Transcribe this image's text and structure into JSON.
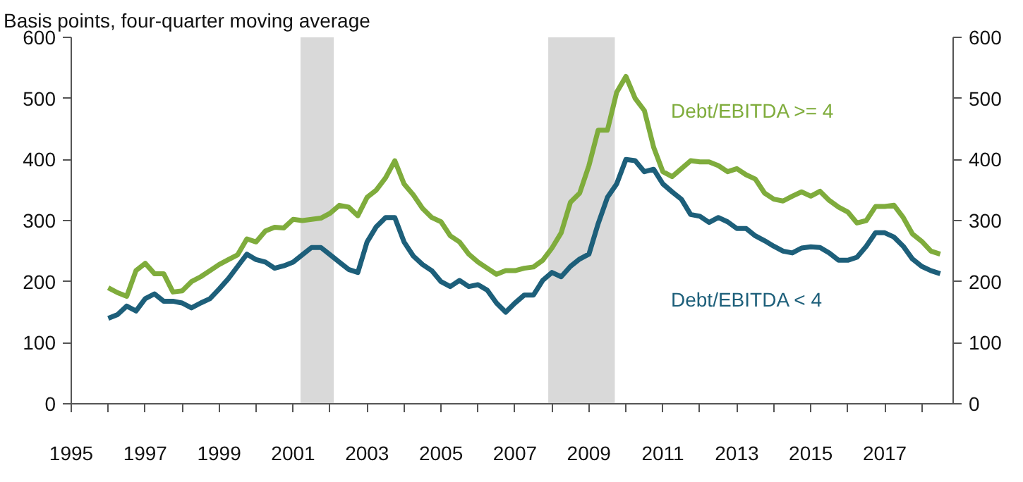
{
  "chart_data": {
    "type": "line",
    "ylabel": "Basis points, four-quarter moving average",
    "x": [
      1996.0,
      1996.25,
      1996.5,
      1996.75,
      1997.0,
      1997.25,
      1997.5,
      1997.75,
      1998.0,
      1998.25,
      1998.5,
      1998.75,
      1999.0,
      1999.25,
      1999.5,
      1999.75,
      2000.0,
      2000.25,
      2000.5,
      2000.75,
      2001.0,
      2001.25,
      2001.5,
      2001.75,
      2002.0,
      2002.25,
      2002.5,
      2002.75,
      2003.0,
      2003.25,
      2003.5,
      2003.75,
      2004.0,
      2004.25,
      2004.5,
      2004.75,
      2005.0,
      2005.25,
      2005.5,
      2005.75,
      2006.0,
      2006.25,
      2006.5,
      2006.75,
      2007.0,
      2007.25,
      2007.5,
      2007.75,
      2008.0,
      2008.25,
      2008.5,
      2008.75,
      2009.0,
      2009.25,
      2009.5,
      2009.75,
      2010.0,
      2010.25,
      2010.5,
      2010.75,
      2011.0,
      2011.25,
      2011.5,
      2011.75,
      2012.0,
      2012.25,
      2012.5,
      2012.75,
      2013.0,
      2013.25,
      2013.5,
      2013.75,
      2014.0,
      2014.25,
      2014.5,
      2014.75,
      2015.0,
      2015.25,
      2015.5,
      2015.75,
      2016.0,
      2016.25,
      2016.5,
      2016.75,
      2017.0,
      2017.25,
      2017.5,
      2017.75,
      2018.0,
      2018.25,
      2018.5
    ],
    "series": [
      {
        "name": "Debt/EBITDA >= 4",
        "color": "#7fac3c",
        "values": [
          190,
          182,
          176,
          218,
          230,
          213,
          213,
          183,
          185,
          200,
          208,
          218,
          228,
          236,
          244,
          270,
          265,
          283,
          289,
          288,
          302,
          300,
          302,
          304,
          312,
          325,
          322,
          308,
          338,
          350,
          370,
          398,
          360,
          342,
          320,
          305,
          298,
          275,
          265,
          245,
          232,
          222,
          212,
          218,
          218,
          222,
          224,
          235,
          255,
          280,
          330,
          345,
          390,
          448,
          448,
          510,
          536,
          500,
          480,
          420,
          380,
          372,
          385,
          398,
          396,
          396,
          390,
          380,
          385,
          375,
          368,
          345,
          335,
          332,
          340,
          347,
          340,
          348,
          333,
          322,
          314,
          296,
          300,
          323,
          323,
          325,
          305,
          278,
          266,
          250,
          245
        ]
      },
      {
        "name": "Debt/EBITDA < 4",
        "color": "#1d5f7a",
        "values": [
          140,
          146,
          160,
          152,
          172,
          180,
          168,
          168,
          165,
          157,
          165,
          172,
          188,
          205,
          225,
          245,
          236,
          232,
          222,
          226,
          232,
          244,
          256,
          256,
          244,
          232,
          220,
          215,
          265,
          290,
          305,
          305,
          265,
          242,
          228,
          218,
          200,
          192,
          202,
          192,
          195,
          186,
          165,
          150,
          165,
          178,
          178,
          202,
          215,
          208,
          225,
          237,
          245,
          295,
          338,
          360,
          400,
          398,
          380,
          384,
          360,
          347,
          335,
          310,
          307,
          297,
          305,
          298,
          287,
          287,
          275,
          267,
          258,
          250,
          247,
          255,
          257,
          256,
          247,
          235,
          235,
          240,
          258,
          280,
          280,
          273,
          258,
          237,
          225,
          218,
          213
        ]
      }
    ],
    "xlim": [
      1995,
      2018.85
    ],
    "xticks": [
      1995,
      {
        "value": 1996,
        "label": null
      },
      1997,
      {
        "value": 1998,
        "label": null
      },
      1999,
      {
        "value": 2000,
        "label": null
      },
      2001,
      {
        "value": 2002,
        "label": null
      },
      2003,
      {
        "value": 2004,
        "label": null
      },
      2005,
      {
        "value": 2006,
        "label": null
      },
      2007,
      {
        "value": 2008,
        "label": null
      },
      2009,
      {
        "value": 2010,
        "label": null
      },
      2011,
      {
        "value": 2012,
        "label": null
      },
      2013,
      {
        "value": 2014,
        "label": null
      },
      2015,
      {
        "value": 2016,
        "label": null
      },
      2017,
      {
        "value": 2018,
        "label": null
      }
    ],
    "ylim": [
      0,
      600
    ],
    "yticks": [
      0,
      100,
      200,
      300,
      400,
      500,
      600
    ],
    "y2lim": [
      0,
      600
    ],
    "y2ticks": [
      0,
      100,
      200,
      300,
      400,
      500,
      600
    ],
    "bands": [
      {
        "axis": "x",
        "from": 2001.2,
        "to": 2002.1,
        "color": "#d9d9d9"
      },
      {
        "axis": "x",
        "from": 2007.9,
        "to": 2009.7,
        "color": "#d9d9d9"
      }
    ],
    "grid": false,
    "legend": false,
    "line_style": "solid",
    "marker": "none"
  }
}
